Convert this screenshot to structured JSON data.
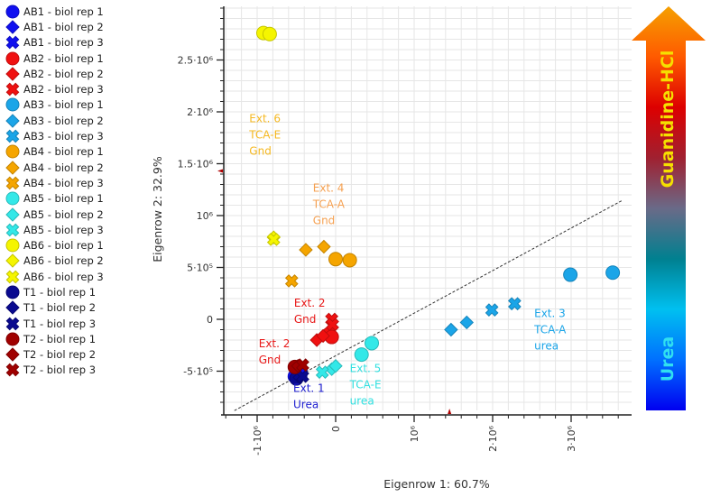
{
  "chart_data": {
    "type": "scatter",
    "xlabel": "Eigenrow 1:  60.7%",
    "ylabel": "Eigenrow 2:  32.9%",
    "xlim": [
      -1450000.0,
      3750000.0
    ],
    "ylim": [
      -880000.0,
      3000000.0
    ],
    "grid": true,
    "legend_placement": "left",
    "x_ticks": [
      {
        "value": -1000000.0,
        "label": "-1·10⁶"
      },
      {
        "value": 0,
        "label": "0"
      },
      {
        "value": 1000000.0,
        "label": "10⁶"
      },
      {
        "value": 2000000.0,
        "label": "2·10⁶"
      },
      {
        "value": 3000000.0,
        "label": "3·10⁶"
      }
    ],
    "y_ticks": [
      {
        "value": -500000.0,
        "label": "-5·10⁵"
      },
      {
        "value": 0,
        "label": "0"
      },
      {
        "value": 500000.0,
        "label": "5·10⁵"
      },
      {
        "value": 1000000.0,
        "label": "10⁶"
      },
      {
        "value": 1500000.0,
        "label": "1.5·10⁶"
      },
      {
        "value": 2000000.0,
        "label": "2·10⁶"
      },
      {
        "value": 2500000.0,
        "label": "2.5·10⁶"
      }
    ],
    "series": [
      {
        "name": "AB1 - biol rep 1",
        "marker": "circle",
        "color": "#1010f0",
        "points": [
          [
            -520000.0,
            -550000.0
          ]
        ]
      },
      {
        "name": "AB1 - biol rep 2",
        "marker": "diamond",
        "color": "#1010f0",
        "points": [
          [
            -480000.0,
            -530000.0
          ]
        ]
      },
      {
        "name": "AB1 - biol rep 3",
        "marker": "x",
        "color": "#1010f0",
        "points": [
          [
            -440000.0,
            -520000.0
          ]
        ]
      },
      {
        "name": "AB2 - biol rep 1",
        "marker": "circle",
        "color": "#f01010",
        "points": [
          [
            -80000.0,
            -140000.0
          ],
          [
            -50000.0,
            -170000.0
          ]
        ]
      },
      {
        "name": "AB2 - biol rep 2",
        "marker": "diamond",
        "color": "#f01010",
        "points": [
          [
            -240000.0,
            -200000.0
          ],
          [
            -160000.0,
            -160000.0
          ]
        ]
      },
      {
        "name": "AB2 - biol rep 3",
        "marker": "x",
        "color": "#f01010",
        "points": [
          [
            -50000.0,
            0.0
          ],
          [
            -40000.0,
            -50000.0
          ]
        ]
      },
      {
        "name": "AB3 - biol rep 1",
        "marker": "circle",
        "color": "#1ba5e8",
        "points": [
          [
            2990000.0,
            430000.0
          ],
          [
            3530000.0,
            450000.0
          ]
        ]
      },
      {
        "name": "AB3 - biol rep 2",
        "marker": "diamond",
        "color": "#1ba5e8",
        "points": [
          [
            1470000.0,
            -100000.0
          ],
          [
            1670000.0,
            -30000.0
          ]
        ]
      },
      {
        "name": "AB3 - biol rep 3",
        "marker": "x",
        "color": "#1ba5e8",
        "points": [
          [
            1990000.0,
            90000.0
          ],
          [
            2280000.0,
            150000.0
          ]
        ]
      },
      {
        "name": "AB4 - biol rep 1",
        "marker": "circle",
        "color": "#f5a500",
        "points": [
          [
            0.0,
            580000.0
          ],
          [
            180000.0,
            570000.0
          ]
        ]
      },
      {
        "name": "AB4 - biol rep 2",
        "marker": "diamond",
        "color": "#f5a500",
        "points": [
          [
            -380000.0,
            670000.0
          ],
          [
            -150000.0,
            700000.0
          ]
        ]
      },
      {
        "name": "AB4 - biol rep 3",
        "marker": "x",
        "color": "#f5a500",
        "points": [
          [
            -560000.0,
            370000.0
          ]
        ]
      },
      {
        "name": "AB5 - biol rep 1",
        "marker": "circle",
        "color": "#33e8e8",
        "points": [
          [
            330000.0,
            -340000.0
          ],
          [
            460000.0,
            -230000.0
          ]
        ]
      },
      {
        "name": "AB5 - biol rep 2",
        "marker": "diamond",
        "color": "#33e8e8",
        "points": [
          [
            -50000.0,
            -480000.0
          ],
          [
            0.0,
            -450000.0
          ]
        ]
      },
      {
        "name": "AB5 - biol rep 3",
        "marker": "x",
        "color": "#33e8e8",
        "points": [
          [
            -170000.0,
            -510000.0
          ]
        ]
      },
      {
        "name": "AB6 - biol rep 1",
        "marker": "circle",
        "color": "#f5f500",
        "points": [
          [
            -920000.0,
            2760000.0
          ],
          [
            -840000.0,
            2750000.0
          ]
        ]
      },
      {
        "name": "AB6 - biol rep 2",
        "marker": "diamond",
        "color": "#f5f500",
        "points": [
          [
            -790000.0,
            790000.0
          ]
        ]
      },
      {
        "name": "AB6 - biol rep 3",
        "marker": "x",
        "color": "#f5f500",
        "points": [
          [
            -790000.0,
            770000.0
          ]
        ]
      },
      {
        "name": "T1 - biol rep 1",
        "marker": "circle",
        "color": "#0a0a90",
        "points": [
          [
            -500000.0,
            -570000.0
          ]
        ]
      },
      {
        "name": "T1 - biol rep 2",
        "marker": "diamond",
        "color": "#0a0a90",
        "points": [
          [
            -460000.0,
            -560000.0
          ]
        ]
      },
      {
        "name": "T1 - biol rep 3",
        "marker": "x",
        "color": "#0a0a90",
        "points": [
          [
            -420000.0,
            -550000.0
          ]
        ]
      },
      {
        "name": "T2 - biol rep 1",
        "marker": "circle",
        "color": "#a00000",
        "points": [
          [
            -520000.0,
            -460000.0
          ]
        ]
      },
      {
        "name": "T2 - biol rep 2",
        "marker": "diamond",
        "color": "#a00000",
        "points": [
          [
            -480000.0,
            -450000.0
          ]
        ]
      },
      {
        "name": "T2 - biol rep 3",
        "marker": "x",
        "color": "#a00000",
        "points": [
          [
            -420000.0,
            -440000.0
          ]
        ]
      }
    ],
    "dashed_line": [
      [
        -1290000.0,
        -880000.0
      ],
      [
        3660000.0,
        1150000.0
      ]
    ],
    "axis_markers": {
      "x": 1450000.0,
      "y": 1430000.0
    },
    "annotations": [
      {
        "lines": [
          "Ext. 6",
          "TCA-E",
          "Gnd"
        ],
        "color": "#f5b820",
        "at": [
          -1100000.0,
          1900000.0
        ]
      },
      {
        "lines": [
          "Ext. 4",
          "TCA-A",
          "Gnd"
        ],
        "color": "#f5a050",
        "at": [
          -290000.0,
          1230000.0
        ]
      },
      {
        "lines": [
          "Ext. 2",
          "Gnd"
        ],
        "color": "#e81818",
        "at": [
          -530000.0,
          120000.0
        ]
      },
      {
        "lines": [
          "Ext. 2",
          "Gnd"
        ],
        "color": "#e81818",
        "at": [
          -980000.0,
          -270000.0
        ]
      },
      {
        "lines": [
          "Ext. 1",
          "Urea"
        ],
        "color": "#2020d0",
        "at": [
          -540000.0,
          -700000.0
        ]
      },
      {
        "lines": [
          "Ext. 5",
          "TCA-E",
          "urea"
        ],
        "color": "#30e0e0",
        "at": [
          180000.0,
          -510000.0
        ]
      },
      {
        "lines": [
          "Ext. 3",
          "TCA-A",
          "urea"
        ],
        "color": "#1ba5e8",
        "at": [
          2530000.0,
          20000.0
        ]
      }
    ],
    "gradient_arrow": {
      "top_label": "Guanidine-HCl",
      "bottom_label": "Urea",
      "top_label_color": "#f5e000",
      "bottom_label_color": "#30e0f0",
      "stops": [
        "#f5a000",
        "#ff5a00",
        "#dd0000",
        "#a02030",
        "#6a6a88",
        "#008090",
        "#00c0f0",
        "#0070ff",
        "#0000f0"
      ]
    }
  }
}
